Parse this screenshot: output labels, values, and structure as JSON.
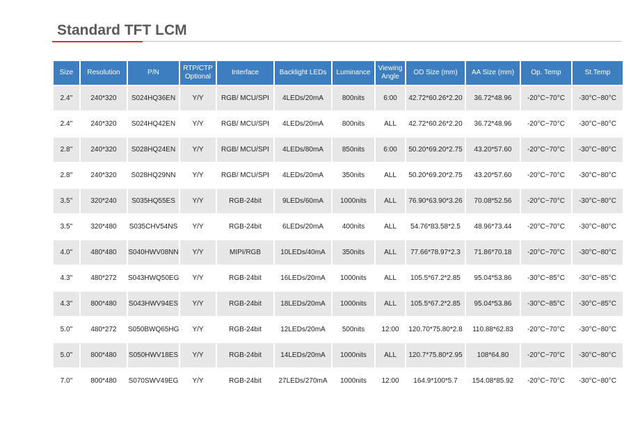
{
  "header": {
    "title": "Standard TFT LCM"
  },
  "table": {
    "columns": [
      "Size",
      "Resolution",
      "P/N",
      "RTP/CTP Optional",
      "Interface",
      "Backlight LEDs",
      "Luminance",
      "Viewing Angle",
      "OD Size (mm)",
      "AA Size (mm)",
      "Op. Temp",
      "St.Temp"
    ],
    "rows": [
      [
        "2.4''",
        "240*320",
        "S024HQ36EN",
        "Y/Y",
        "RGB/ MCU/SPI",
        "4LEDs/20mA",
        "800nits",
        "6:00",
        "42.72*60.26*2.20",
        "36.72*48.96",
        "-20°C~70°C",
        "-30°C~80°C"
      ],
      [
        "2.4''",
        "240*320",
        "S024HQ42EN",
        "Y/Y",
        "RGB/ MCU/SPI",
        "4LEDs/20mA",
        "800nits",
        "ALL",
        "42.72*60.26*2.20",
        "36.72*48.96",
        "-20°C~70°C",
        "-30°C~80°C"
      ],
      [
        "2.8''",
        "240*320",
        "S028HQ24EN",
        "Y/Y",
        "RGB/ MCU/SPI",
        "4LEDs/80mA",
        "850nits",
        "6:00",
        "50.20*69.20*2.75",
        "43.20*57.60",
        "-20°C~70°C",
        "-30°C~80°C"
      ],
      [
        "2.8''",
        "240*320",
        "S028HQ29NN",
        "Y/Y",
        "RGB/ MCU/SPI",
        "4LEDs/20mA",
        "350nits",
        "ALL",
        "50.20*69.20*2.75",
        "43.20*57.60",
        "-20°C~70°C",
        "-30°C~80°C"
      ],
      [
        "3.5''",
        "320*240",
        "S035HQ55ES",
        "Y/Y",
        "RGB-24bit",
        "9LEDs/60mA",
        "1000nits",
        "ALL",
        "76.90*63.90*3.26",
        "70.08*52.56",
        "-20°C~70°C",
        "-30°C~80°C"
      ],
      [
        "3.5''",
        "320*480",
        "S035CHV54NS",
        "Y/Y",
        "RGB-24bit",
        "6LEDs/20mA",
        "400nits",
        "ALL",
        "54.76*83.58*2.5",
        "48.96*73.44",
        "-20°C~70°C",
        "-30°C~80°C"
      ],
      [
        "4.0''",
        "480*480",
        "S040HWV08NN",
        "Y/Y",
        "MIPI/RGB",
        "10LEDs/40mA",
        "350nits",
        "ALL",
        "77.66*78.97*2.3",
        "71.86*70.18",
        "-20°C~70°C",
        "-30°C~80°C"
      ],
      [
        "4.3''",
        "480*272",
        "S043HWQ50EG",
        "Y/Y",
        "RGB-24bit",
        "16LEDs/20mA",
        "1000nits",
        "ALL",
        "105.5*67.2*2.85",
        "95.04*53.86",
        "-30°C~85°C",
        "-30°C~85°C"
      ],
      [
        "4.3''",
        "800*480",
        "S043HWV94ES",
        "Y/Y",
        "RGB-24bit",
        "18LEDs/20mA",
        "1000nits",
        "ALL",
        "105.5*67.2*2.85",
        "95.04*53.86",
        "-30°C~85°C",
        "-30°C~85°C"
      ],
      [
        "5.0''",
        "480*272",
        "S050BWQ65HG",
        "Y/Y",
        "RGB-24bit",
        "12LEDs/20mA",
        "500nits",
        "12:00",
        "120.70*75.80*2.8",
        "110.88*62.83",
        "-20°C~70°C",
        "-30°C~80°C"
      ],
      [
        "5.0''",
        "800*480",
        "S050HWV18ES",
        "Y/Y",
        "RGB-24bit",
        "14LEDs/20mA",
        "1000nits",
        "ALL",
        "120.7*75.80*2.95",
        "108*64.80",
        "-20°C~70°C",
        "-30°C~80°C"
      ],
      [
        "7.0''",
        "800*480",
        "S070SWV49EG",
        "Y/Y",
        "RGB-24bit",
        "27LEDs/270mA",
        "1000nits",
        "12:00",
        "164.9*100*5.7",
        "154.08*85.92",
        "-20°C~70°C",
        "-30°C~80°C"
      ]
    ]
  }
}
